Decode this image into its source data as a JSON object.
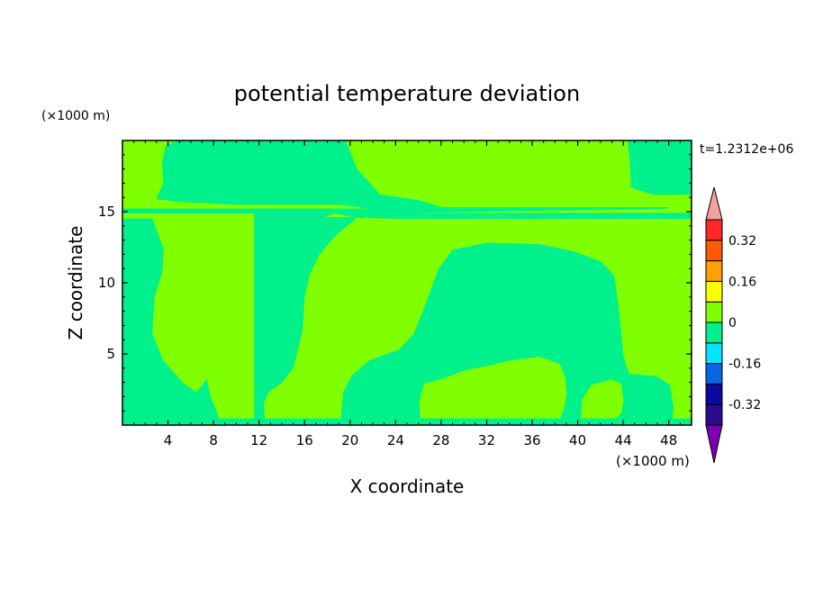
{
  "chart_data": {
    "type": "heatmap",
    "title": "potential temperature deviation",
    "xlabel": "X coordinate",
    "ylabel": "Z coordinate",
    "x_unit": "(×1000 m)",
    "y_unit": "(×1000 m)",
    "time_label": "t=1.2312e+06",
    "xlim": [
      0,
      50
    ],
    "ylim": [
      0,
      20
    ],
    "x_ticks": [
      4,
      8,
      12,
      16,
      20,
      24,
      28,
      32,
      36,
      40,
      44,
      48
    ],
    "y_ticks": [
      5,
      10,
      15
    ],
    "colorbar": {
      "levels": [
        -0.4,
        -0.32,
        -0.24,
        -0.16,
        -0.08,
        0,
        0.08,
        0.16,
        0.24,
        0.32,
        0.4
      ],
      "labels": [
        "-0.32",
        "-0.16",
        "0",
        "0.16",
        "0.32"
      ],
      "label_values": [
        -0.32,
        -0.16,
        0,
        0.16,
        0.32
      ],
      "colors": [
        "#2e0a8e",
        "#0a0a9e",
        "#0a64e6",
        "#00e6ff",
        "#00f08c",
        "#7fff00",
        "#ffff00",
        "#ffa000",
        "#ff5a00",
        "#ff2828"
      ],
      "under_color": "#7a00b4",
      "over_color": "#f5a0a0"
    },
    "background_color": "#7fff00",
    "regions": [
      {
        "value_range": [
          -0.08,
          0
        ],
        "color": "#00f08c",
        "points": [
          [
            4.8,
            20
          ],
          [
            19.6,
            20
          ],
          [
            20.6,
            18
          ],
          [
            22.6,
            16.2
          ],
          [
            26,
            15.8
          ],
          [
            28,
            15.3
          ],
          [
            48,
            15.3
          ],
          [
            47.6,
            15.2
          ],
          [
            23,
            14.9
          ],
          [
            0,
            14.9
          ],
          [
            0,
            15.2
          ],
          [
            22,
            15.2
          ],
          [
            19,
            15.5
          ],
          [
            10,
            15.5
          ],
          [
            4.8,
            15.7
          ],
          [
            3,
            15.9
          ],
          [
            3.6,
            17
          ],
          [
            3.5,
            18.5
          ],
          [
            3.8,
            19.6
          ]
        ]
      },
      {
        "value_range": [
          -0.08,
          0
        ],
        "color": "#00f08c",
        "points": [
          [
            0,
            14.5
          ],
          [
            2.6,
            14.5
          ],
          [
            3.6,
            12.4
          ],
          [
            3.5,
            10.8
          ],
          [
            2.8,
            9
          ],
          [
            2.6,
            6.4
          ],
          [
            3.6,
            4.5
          ],
          [
            5.4,
            2.9
          ],
          [
            6.5,
            2.3
          ],
          [
            7.4,
            3.2
          ],
          [
            7.8,
            1.8
          ],
          [
            8.3,
            0.9
          ],
          [
            8.5,
            0.4
          ],
          [
            0,
            0.4
          ]
        ]
      },
      {
        "value_range": [
          -0.08,
          0
        ],
        "color": "#00f08c",
        "points": [
          [
            11.6,
            0.4
          ],
          [
            14.4,
            14
          ],
          [
            17.4,
            14.5
          ],
          [
            18.6,
            14.9
          ],
          [
            11.6,
            14.9
          ]
        ]
      },
      {
        "value_range": [
          -0.08,
          0
        ],
        "color": "#00f08c",
        "points": [
          [
            18.6,
            14.9
          ],
          [
            20.4,
            14.6
          ],
          [
            24,
            14.5
          ],
          [
            30,
            14.5
          ],
          [
            35,
            14.5
          ],
          [
            50,
            14.5
          ],
          [
            50,
            14.9
          ]
        ]
      },
      {
        "value_range": [
          -0.08,
          0
        ],
        "color": "#00f08c",
        "points": [
          [
            12.5,
            0.4
          ],
          [
            12.4,
            1.5
          ],
          [
            12.8,
            2.3
          ],
          [
            14,
            3
          ],
          [
            15,
            4
          ],
          [
            15.8,
            6.6
          ],
          [
            16,
            9
          ],
          [
            16.4,
            10.5
          ],
          [
            17.3,
            12
          ],
          [
            18.8,
            13.4
          ],
          [
            20.2,
            14.3
          ],
          [
            20.6,
            14.6
          ],
          [
            11.6,
            14.6
          ],
          [
            11.6,
            0.4
          ]
        ]
      },
      {
        "value_range": [
          -0.08,
          0
        ],
        "color": "#00f08c",
        "points": [
          [
            19.2,
            0.4
          ],
          [
            19.4,
            2.3
          ],
          [
            20.2,
            3.5
          ],
          [
            21.6,
            4.5
          ],
          [
            24.3,
            5.3
          ],
          [
            25.6,
            6.4
          ],
          [
            26.6,
            8.4
          ],
          [
            27.8,
            11
          ],
          [
            29,
            12.3
          ],
          [
            32,
            12.8
          ],
          [
            36.6,
            12.7
          ],
          [
            39.6,
            12.2
          ],
          [
            42,
            11.5
          ],
          [
            43.2,
            10.5
          ],
          [
            43.6,
            8.2
          ],
          [
            44,
            4.8
          ],
          [
            44.5,
            3.6
          ],
          [
            47,
            3.4
          ],
          [
            48.1,
            2.8
          ],
          [
            48.4,
            1.2
          ],
          [
            48.3,
            0.4
          ]
        ]
      },
      {
        "value_range": [
          0,
          0.08
        ],
        "color": "#7fff00",
        "points": [
          [
            26.2,
            0.4
          ],
          [
            26.1,
            1.6
          ],
          [
            26.5,
            2.9
          ],
          [
            28,
            3.2
          ],
          [
            30,
            3.8
          ],
          [
            34,
            4.5
          ],
          [
            36.6,
            4.8
          ],
          [
            38.4,
            4.3
          ],
          [
            38.9,
            3.3
          ],
          [
            39,
            2.2
          ],
          [
            38.8,
            1.2
          ],
          [
            38.4,
            0.4
          ]
        ]
      },
      {
        "value_range": [
          0,
          0.08
        ],
        "color": "#7fff00",
        "points": [
          [
            40.3,
            0.4
          ],
          [
            40.4,
            1.8
          ],
          [
            41.2,
            2.8
          ],
          [
            43,
            3.2
          ],
          [
            43.8,
            2.9
          ],
          [
            44,
            1.7
          ],
          [
            43.8,
            0.8
          ],
          [
            43.2,
            0.4
          ]
        ]
      },
      {
        "value_range": [
          0,
          0.08
        ],
        "color": "#7fff00",
        "points": [
          [
            42.5,
            20
          ],
          [
            44.1,
            20
          ],
          [
            44.4,
            17
          ],
          [
            45.2,
            16.4
          ],
          [
            46.6,
            16.2
          ],
          [
            50,
            16
          ],
          [
            50,
            20
          ]
        ]
      },
      {
        "value_range": [
          -0.08,
          0
        ],
        "color": "#00f08c",
        "points": [
          [
            44.4,
            20
          ],
          [
            50,
            20
          ],
          [
            50,
            16.2
          ],
          [
            46.6,
            16.2
          ],
          [
            44.7,
            16.7
          ],
          [
            44.6,
            18.5
          ]
        ]
      },
      {
        "value_range": [
          -0.08,
          0
        ],
        "color": "#00f08c",
        "points": [
          [
            0,
            0
          ],
          [
            50,
            0
          ],
          [
            50,
            0.45
          ],
          [
            0,
            0.45
          ]
        ]
      }
    ]
  }
}
